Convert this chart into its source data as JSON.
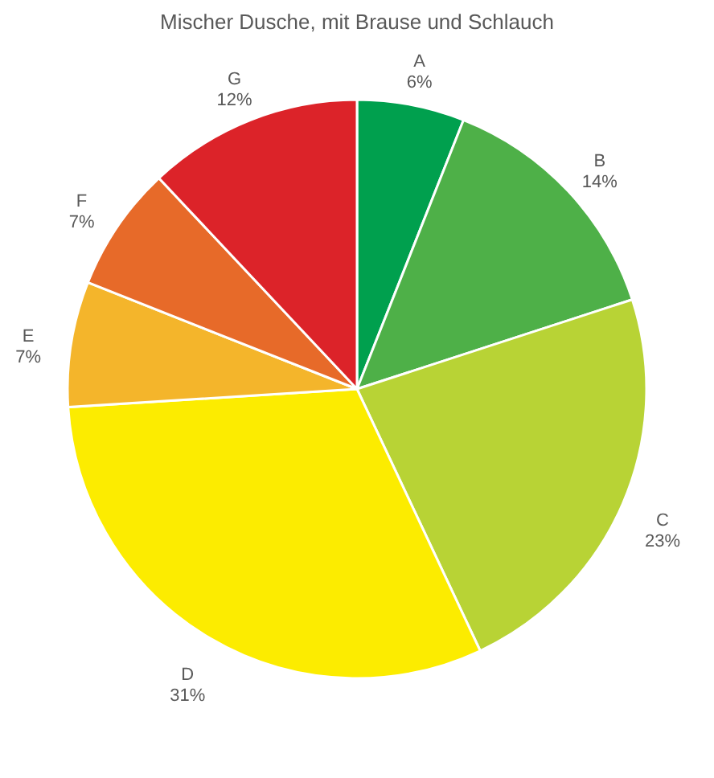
{
  "chart_data": {
    "type": "pie",
    "title": "Mischer Dusche,  mit Brause und Schlauch",
    "categories": [
      "A",
      "B",
      "C",
      "D",
      "E",
      "F",
      "G"
    ],
    "values": [
      6,
      14,
      23,
      31,
      7,
      7,
      12
    ],
    "value_labels": [
      "6%",
      "14%",
      "23%",
      "31%",
      "7%",
      "7%",
      "12%"
    ],
    "colors": [
      "#00a04e",
      "#4eb048",
      "#b8d335",
      "#fcec00",
      "#f4b52b",
      "#e76a29",
      "#dc2329"
    ],
    "legend": false
  }
}
